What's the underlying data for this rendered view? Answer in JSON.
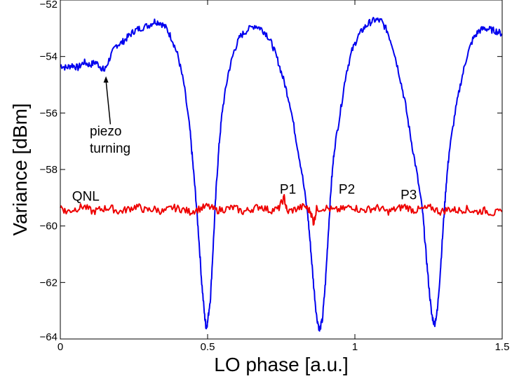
{
  "chart_data": {
    "type": "line",
    "title": "",
    "xlabel": "LO phase [a.u.]",
    "ylabel": "Variance [dBm]",
    "xlim": [
      0,
      1.5
    ],
    "ylim": [
      -64,
      -52
    ],
    "x_ticks": [
      0,
      0.5,
      1,
      1.5
    ],
    "x_tick_labels": [
      "0",
      "0.5",
      "1",
      "1.5"
    ],
    "y_ticks": [
      -64,
      -62,
      -60,
      -58,
      -56,
      -54,
      -52
    ],
    "y_tick_labels": [
      "−64",
      "−62",
      "−60",
      "−58",
      "−56",
      "−54",
      "−52"
    ],
    "grid": false,
    "series": [
      {
        "color": "#0000ee",
        "points": [
          [
            0.0,
            -54.3
          ],
          [
            0.02,
            -54.4
          ],
          [
            0.04,
            -54.3
          ],
          [
            0.06,
            -54.4
          ],
          [
            0.08,
            -54.2
          ],
          [
            0.1,
            -54.3
          ],
          [
            0.12,
            -54.2
          ],
          [
            0.14,
            -54.4
          ],
          [
            0.15,
            -54.5
          ],
          [
            0.17,
            -54.0
          ],
          [
            0.19,
            -53.6
          ],
          [
            0.21,
            -53.5
          ],
          [
            0.23,
            -53.3
          ],
          [
            0.25,
            -53.1
          ],
          [
            0.27,
            -53.0
          ],
          [
            0.3,
            -52.9
          ],
          [
            0.32,
            -52.75
          ],
          [
            0.34,
            -52.8
          ],
          [
            0.36,
            -53.0
          ],
          [
            0.38,
            -53.4
          ],
          [
            0.4,
            -54.0
          ],
          [
            0.42,
            -55.0
          ],
          [
            0.44,
            -56.6
          ],
          [
            0.45,
            -57.8
          ],
          [
            0.46,
            -59.0
          ],
          [
            0.47,
            -60.4
          ],
          [
            0.48,
            -62.0
          ],
          [
            0.49,
            -63.2
          ],
          [
            0.495,
            -63.6
          ],
          [
            0.5,
            -63.4
          ],
          [
            0.51,
            -62.5
          ],
          [
            0.52,
            -60.5
          ],
          [
            0.53,
            -58.5
          ],
          [
            0.54,
            -57.0
          ],
          [
            0.55,
            -55.9
          ],
          [
            0.57,
            -54.6
          ],
          [
            0.59,
            -53.8
          ],
          [
            0.61,
            -53.3
          ],
          [
            0.63,
            -53.1
          ],
          [
            0.66,
            -52.9
          ],
          [
            0.68,
            -53.0
          ],
          [
            0.7,
            -53.2
          ],
          [
            0.72,
            -53.6
          ],
          [
            0.74,
            -54.2
          ],
          [
            0.76,
            -54.9
          ],
          [
            0.78,
            -55.7
          ],
          [
            0.8,
            -56.9
          ],
          [
            0.82,
            -58.1
          ],
          [
            0.84,
            -59.6
          ],
          [
            0.85,
            -60.8
          ],
          [
            0.86,
            -62.1
          ],
          [
            0.87,
            -63.2
          ],
          [
            0.88,
            -63.7
          ],
          [
            0.89,
            -63.3
          ],
          [
            0.9,
            -62.0
          ],
          [
            0.91,
            -60.2
          ],
          [
            0.92,
            -58.5
          ],
          [
            0.93,
            -57.3
          ],
          [
            0.95,
            -56.0
          ],
          [
            0.97,
            -54.6
          ],
          [
            0.99,
            -53.8
          ],
          [
            1.01,
            -53.3
          ],
          [
            1.03,
            -53.0
          ],
          [
            1.05,
            -52.8
          ],
          [
            1.07,
            -52.7
          ],
          [
            1.09,
            -52.75
          ],
          [
            1.11,
            -53.1
          ],
          [
            1.13,
            -53.7
          ],
          [
            1.15,
            -54.6
          ],
          [
            1.17,
            -55.6
          ],
          [
            1.19,
            -56.9
          ],
          [
            1.21,
            -58.1
          ],
          [
            1.23,
            -59.5
          ],
          [
            1.24,
            -60.8
          ],
          [
            1.25,
            -62.0
          ],
          [
            1.26,
            -63.1
          ],
          [
            1.27,
            -63.5
          ],
          [
            1.28,
            -63.0
          ],
          [
            1.29,
            -61.6
          ],
          [
            1.3,
            -60.0
          ],
          [
            1.31,
            -58.5
          ],
          [
            1.32,
            -57.4
          ],
          [
            1.34,
            -56.0
          ],
          [
            1.36,
            -54.9
          ],
          [
            1.38,
            -54.0
          ],
          [
            1.4,
            -53.4
          ],
          [
            1.42,
            -53.1
          ],
          [
            1.44,
            -53.0
          ],
          [
            1.46,
            -53.05
          ],
          [
            1.48,
            -53.1
          ],
          [
            1.5,
            -53.2
          ]
        ]
      },
      {
        "color": "#ee0000",
        "base_value": -59.4,
        "points": [
          [
            0.0,
            -59.3
          ],
          [
            0.02,
            -59.5
          ],
          [
            0.05,
            -59.4
          ],
          [
            0.08,
            -59.3
          ],
          [
            0.11,
            -59.5
          ],
          [
            0.14,
            -59.4
          ],
          [
            0.17,
            -59.35
          ],
          [
            0.2,
            -59.5
          ],
          [
            0.23,
            -59.4
          ],
          [
            0.26,
            -59.3
          ],
          [
            0.29,
            -59.45
          ],
          [
            0.32,
            -59.4
          ],
          [
            0.35,
            -59.5
          ],
          [
            0.38,
            -59.35
          ],
          [
            0.41,
            -59.4
          ],
          [
            0.44,
            -59.5
          ],
          [
            0.47,
            -59.4
          ],
          [
            0.5,
            -59.3
          ],
          [
            0.53,
            -59.45
          ],
          [
            0.56,
            -59.4
          ],
          [
            0.59,
            -59.35
          ],
          [
            0.62,
            -59.5
          ],
          [
            0.65,
            -59.4
          ],
          [
            0.68,
            -59.3
          ],
          [
            0.71,
            -59.45
          ],
          [
            0.74,
            -59.4
          ],
          [
            0.76,
            -59.0
          ],
          [
            0.77,
            -59.5
          ],
          [
            0.8,
            -59.4
          ],
          [
            0.83,
            -59.3
          ],
          [
            0.85,
            -59.5
          ],
          [
            0.86,
            -59.9
          ],
          [
            0.87,
            -59.4
          ],
          [
            0.9,
            -59.35
          ],
          [
            0.93,
            -59.45
          ],
          [
            0.96,
            -59.4
          ],
          [
            0.99,
            -59.3
          ],
          [
            1.02,
            -59.45
          ],
          [
            1.05,
            -59.4
          ],
          [
            1.08,
            -59.35
          ],
          [
            1.11,
            -59.5
          ],
          [
            1.14,
            -59.4
          ],
          [
            1.17,
            -59.3
          ],
          [
            1.2,
            -59.45
          ],
          [
            1.23,
            -59.4
          ],
          [
            1.26,
            -59.35
          ],
          [
            1.29,
            -59.5
          ],
          [
            1.32,
            -59.4
          ],
          [
            1.35,
            -59.45
          ],
          [
            1.38,
            -59.4
          ],
          [
            1.41,
            -59.5
          ],
          [
            1.44,
            -59.45
          ],
          [
            1.47,
            -59.55
          ],
          [
            1.5,
            -59.5
          ]
        ]
      }
    ],
    "annotations": [
      {
        "text": "QNL",
        "x": 0.04,
        "y": -59.1
      },
      {
        "text": "P1",
        "x": 0.745,
        "y": -58.85
      },
      {
        "text": "P2",
        "x": 0.945,
        "y": -58.85
      },
      {
        "text": "P3",
        "x": 1.155,
        "y": -59.05
      },
      {
        "text": "piezo",
        "x": 0.1,
        "y": -56.8
      },
      {
        "text": "turning",
        "x": 0.1,
        "y": -57.4
      }
    ],
    "arrow": {
      "from": [
        0.17,
        -56.4
      ],
      "to": [
        0.155,
        -54.7
      ]
    }
  }
}
